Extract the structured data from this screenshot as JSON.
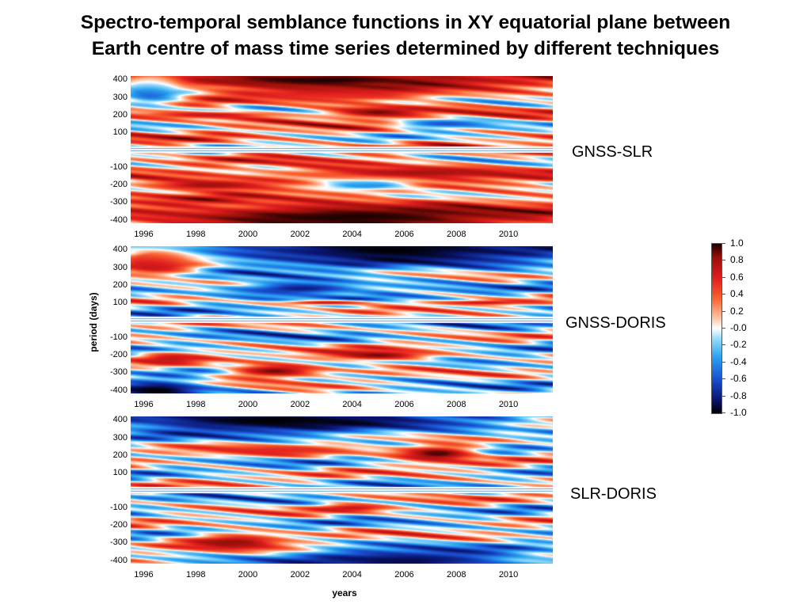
{
  "title_line1": "Spectro-temporal semblance functions in XY equatorial plane between",
  "title_line2": "Earth centre of mass time series determined by different techniques",
  "chart_data": {
    "type": "heatmap",
    "xlabel": "years",
    "ylabel": "period (days)",
    "x_ticks": [
      "1996",
      "1998",
      "2000",
      "2002",
      "2004",
      "2006",
      "2008",
      "2010"
    ],
    "y_ticks": [
      "400",
      "300",
      "200",
      "100",
      "-100",
      "-200",
      "-300",
      "-400"
    ],
    "xlim": [
      1995.5,
      2011.7
    ],
    "ylim": [
      -420,
      420
    ],
    "colorbar": {
      "ticks": [
        "1.0",
        "0.8",
        "0.6",
        "0.4",
        "0.2",
        "-0.0",
        "-0.2",
        "-0.4",
        "-0.6",
        "-0.8",
        "-1.0"
      ],
      "range": [
        -1.0,
        1.0
      ]
    },
    "panels": [
      {
        "name": "GNSS-SLR",
        "dominant_semblance": 0.45,
        "regions": [
          {
            "x": 2003,
            "period": 400,
            "sx": 6,
            "sy": 45,
            "value": 1.0
          },
          {
            "x": 2003.5,
            "period": 310,
            "sx": 3,
            "sy": 25,
            "value": 0.5
          },
          {
            "x": 1996.3,
            "period": 340,
            "sx": 0.9,
            "sy": 60,
            "value": -0.7
          },
          {
            "x": 2005,
            "period": 215,
            "sx": 1.4,
            "sy": 25,
            "value": 0.9
          },
          {
            "x": 1998.5,
            "period": 200,
            "sx": 2,
            "sy": 15,
            "value": 0.7
          },
          {
            "x": 2007.5,
            "period": 150,
            "sx": 1.5,
            "sy": 20,
            "value": -0.6
          },
          {
            "x": 2006.5,
            "period": -130,
            "sx": 4,
            "sy": 30,
            "value": 0.8
          },
          {
            "x": 1998.5,
            "period": -200,
            "sx": 2,
            "sy": 25,
            "value": 0.8
          },
          {
            "x": 2004.5,
            "period": -200,
            "sx": 1.5,
            "sy": 25,
            "value": -0.5
          },
          {
            "x": 2004,
            "period": -380,
            "sx": 7,
            "sy": 70,
            "value": 1.0
          }
        ]
      },
      {
        "name": "GNSS-DORIS",
        "dominant_semblance": -0.3,
        "regions": [
          {
            "x": 2005.5,
            "period": 400,
            "sx": 6,
            "sy": 70,
            "value": -1.0
          },
          {
            "x": 1996.5,
            "period": 330,
            "sx": 1.3,
            "sy": 60,
            "value": 0.9
          },
          {
            "x": 2002,
            "period": 180,
            "sx": 2,
            "sy": 30,
            "value": -0.8
          },
          {
            "x": 2003,
            "period": 100,
            "sx": 1.5,
            "sy": 10,
            "value": 0.7
          },
          {
            "x": 2009,
            "period": 100,
            "sx": 1.5,
            "sy": 10,
            "value": 0.7
          },
          {
            "x": 2005,
            "period": -200,
            "sx": 1.7,
            "sy": 25,
            "value": 0.9
          },
          {
            "x": 2001,
            "period": -290,
            "sx": 1.4,
            "sy": 30,
            "value": 0.9
          },
          {
            "x": 1997,
            "period": -220,
            "sx": 1,
            "sy": 30,
            "value": 0.7
          },
          {
            "x": 1996.5,
            "period": -400,
            "sx": 1.5,
            "sy": 40,
            "value": -1.0
          }
        ]
      },
      {
        "name": "SLR-DORIS",
        "dominant_semblance": -0.15,
        "regions": [
          {
            "x": 2001,
            "period": 400,
            "sx": 6,
            "sy": 60,
            "value": -1.0
          },
          {
            "x": 2007.3,
            "period": 210,
            "sx": 1.2,
            "sy": 35,
            "value": 0.95
          },
          {
            "x": 2001,
            "period": 230,
            "sx": 2.5,
            "sy": 25,
            "value": 0.6
          },
          {
            "x": 1999.5,
            "period": -300,
            "sx": 1.5,
            "sy": 40,
            "value": 0.9
          },
          {
            "x": 2006,
            "period": -400,
            "sx": 4,
            "sy": 50,
            "value": -0.9
          },
          {
            "x": 2004,
            "period": -100,
            "sx": 1,
            "sy": 15,
            "value": 0.7
          }
        ]
      }
    ]
  }
}
